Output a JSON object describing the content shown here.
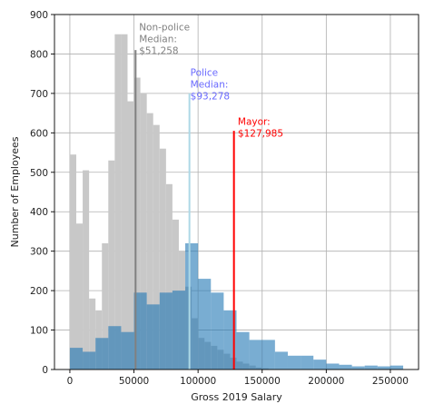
{
  "chart_data": {
    "type": "bar",
    "xlabel": "Gross 2019 Salary",
    "ylabel": "Number of Employees",
    "xlim": [
      -12000,
      272000
    ],
    "ylim": [
      0,
      900
    ],
    "grid": true,
    "x_ticks": [
      0,
      50000,
      100000,
      150000,
      200000,
      250000
    ],
    "y_ticks": [
      0,
      100,
      200,
      300,
      400,
      500,
      600,
      700,
      800,
      900
    ],
    "colors": {
      "non_police": "#c8c8c8",
      "police": "#1f77b4",
      "police_opacity": 0.6,
      "non_police_median": "#808080",
      "police_median": "#add8e6",
      "mayor": "#ff0000",
      "non_police_text": "#808080",
      "police_text": "#6a6aff",
      "mayor_text": "#ff0000"
    },
    "series": [
      {
        "bin_width": 5000,
        "x": [
          0,
          5000,
          10000,
          15000,
          20000,
          25000,
          30000,
          35000,
          40000,
          45000,
          50000,
          55000,
          60000,
          65000,
          70000,
          75000,
          80000,
          85000,
          90000,
          95000,
          100000,
          105000,
          110000,
          115000,
          120000,
          125000,
          130000,
          135000,
          140000,
          145000,
          150000
        ],
        "values": [
          545,
          370,
          505,
          180,
          150,
          320,
          530,
          850,
          850,
          680,
          740,
          700,
          650,
          620,
          560,
          470,
          380,
          300,
          210,
          130,
          80,
          70,
          60,
          50,
          40,
          30,
          20,
          15,
          10,
          5,
          3
        ]
      },
      {
        "bin_width": 10000,
        "x": [
          0,
          10000,
          20000,
          30000,
          40000,
          50000,
          60000,
          70000,
          80000,
          90000,
          100000,
          110000,
          120000,
          130000,
          140000,
          150000,
          160000,
          170000,
          180000,
          190000,
          200000,
          210000,
          220000,
          230000,
          240000,
          250000
        ],
        "values": [
          55,
          45,
          80,
          110,
          95,
          195,
          165,
          195,
          200,
          320,
          230,
          195,
          150,
          95,
          75,
          75,
          45,
          35,
          35,
          25,
          15,
          12,
          8,
          10,
          8,
          10
        ]
      }
    ],
    "annotations": [
      {
        "id": "non-police-median",
        "value": 51258,
        "line_top": 810,
        "color_key": "non_police_median",
        "text_color_key": "non_police_text",
        "text_lines": [
          "Non-police",
          "Median:",
          "$51,258"
        ],
        "text_x": 54000,
        "text_y": 860
      },
      {
        "id": "police-median",
        "value": 93278,
        "line_top": 700,
        "color_key": "police_median",
        "text_color_key": "police_text",
        "text_lines": [
          "Police",
          "Median:",
          "$93,278"
        ],
        "text_x": 94000,
        "text_y": 745
      },
      {
        "id": "mayor",
        "value": 127985,
        "line_top": 605,
        "color_key": "mayor",
        "text_color_key": "mayor_text",
        "text_lines": [
          "Mayor:",
          "$127,985"
        ],
        "text_x": 131000,
        "text_y": 620
      }
    ]
  }
}
